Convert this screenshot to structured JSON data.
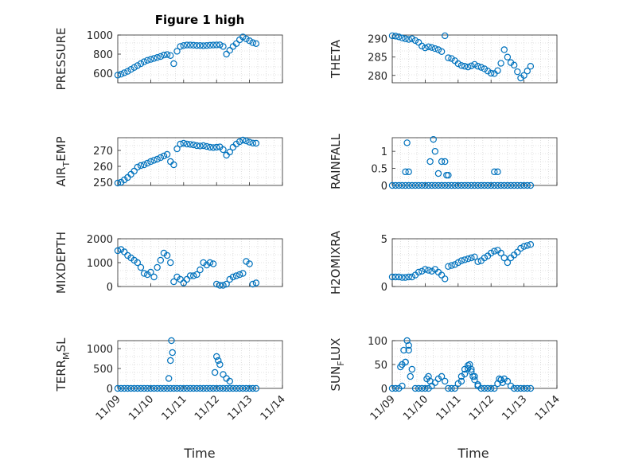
{
  "figure": {
    "title": "Figure 1 high",
    "marker_color": "#0072BD",
    "axis_color": "#262626",
    "grid_color": "#c8c8c8"
  },
  "chart_data": [
    {
      "type": "scatter",
      "title": "Figure 1 high",
      "ylabel_parts": [
        "PRESSURE"
      ],
      "xlim": [
        0,
        5
      ],
      "ylim": [
        500,
        1000
      ],
      "yticks": [
        600,
        800,
        1000
      ],
      "grid": true,
      "x": [
        0.0,
        0.1,
        0.2,
        0.3,
        0.4,
        0.5,
        0.6,
        0.7,
        0.8,
        0.9,
        1.0,
        1.1,
        1.2,
        1.3,
        1.4,
        1.5,
        1.6,
        1.7,
        1.8,
        1.9,
        2.0,
        2.1,
        2.2,
        2.3,
        2.4,
        2.5,
        2.6,
        2.7,
        2.8,
        2.9,
        3.0,
        3.1,
        3.2,
        3.3,
        3.4,
        3.5,
        3.6,
        3.7,
        3.8,
        3.9,
        4.0,
        4.1,
        4.2
      ],
      "y": [
        580,
        590,
        605,
        620,
        640,
        660,
        680,
        700,
        720,
        735,
        745,
        755,
        765,
        775,
        790,
        795,
        785,
        700,
        830,
        880,
        890,
        895,
        895,
        893,
        890,
        890,
        888,
        890,
        893,
        895,
        896,
        897,
        880,
        800,
        840,
        880,
        910,
        950,
        980,
        960,
        940,
        920,
        910
      ]
    },
    {
      "type": "scatter",
      "ylabel_parts": [
        "THETA"
      ],
      "xlim": [
        0,
        5
      ],
      "ylim": [
        278,
        291
      ],
      "yticks": [
        280,
        285,
        290
      ],
      "grid": true,
      "x": [
        0.0,
        0.1,
        0.2,
        0.3,
        0.4,
        0.5,
        0.6,
        0.7,
        0.8,
        0.9,
        1.0,
        1.1,
        1.2,
        1.3,
        1.4,
        1.5,
        1.6,
        1.7,
        1.8,
        1.9,
        2.0,
        2.1,
        2.2,
        2.3,
        2.4,
        2.5,
        2.6,
        2.7,
        2.8,
        2.9,
        3.0,
        3.1,
        3.2,
        3.3,
        3.4,
        3.5,
        3.6,
        3.7,
        3.8,
        3.9,
        4.0,
        4.1,
        4.2
      ],
      "y": [
        290.8,
        290.7,
        290.5,
        290.2,
        290.0,
        289.8,
        290.0,
        289.5,
        289.0,
        288.0,
        287.5,
        287.8,
        287.6,
        287.3,
        287.0,
        286.5,
        290.8,
        284.8,
        284.6,
        284.0,
        283.2,
        282.7,
        282.5,
        282.3,
        282.6,
        283.0,
        282.5,
        282.2,
        281.8,
        281.2,
        280.6,
        280.5,
        281.3,
        283.3,
        287.0,
        285.0,
        283.5,
        282.8,
        281.0,
        279.3,
        280.0,
        281.2,
        282.5
      ]
    },
    {
      "type": "scatter",
      "ylabel_parts": [
        "AIR",
        "T",
        "EMP"
      ],
      "xlim": [
        0,
        5
      ],
      "ylim": [
        248,
        278
      ],
      "yticks": [
        250,
        260,
        270
      ],
      "grid": true,
      "x": [
        0.0,
        0.1,
        0.2,
        0.3,
        0.4,
        0.5,
        0.6,
        0.7,
        0.8,
        0.9,
        1.0,
        1.1,
        1.2,
        1.3,
        1.4,
        1.5,
        1.6,
        1.7,
        1.8,
        1.9,
        2.0,
        2.1,
        2.2,
        2.3,
        2.4,
        2.5,
        2.6,
        2.7,
        2.8,
        2.9,
        3.0,
        3.1,
        3.2,
        3.3,
        3.4,
        3.5,
        3.6,
        3.7,
        3.8,
        3.9,
        4.0,
        4.1,
        4.2
      ],
      "y": [
        249.5,
        250.0,
        251.5,
        253.0,
        255.0,
        257.0,
        259.5,
        260.5,
        261.0,
        262.0,
        263.0,
        263.8,
        264.5,
        265.5,
        266.5,
        267.5,
        263.0,
        261.0,
        271.0,
        274.0,
        274.5,
        274.0,
        273.8,
        273.5,
        273.0,
        272.8,
        273.0,
        272.5,
        272.0,
        271.8,
        272.0,
        272.2,
        270.5,
        267.0,
        269.0,
        272.0,
        274.0,
        275.5,
        276.5,
        276.0,
        275.2,
        274.6,
        274.5
      ]
    },
    {
      "type": "scatter",
      "ylabel_parts": [
        "RAINFALL"
      ],
      "xlim": [
        0,
        5
      ],
      "ylim": [
        0,
        1.4
      ],
      "yticks": [
        0,
        0.5,
        1
      ],
      "grid": true,
      "x": [
        0.0,
        0.1,
        0.2,
        0.3,
        0.4,
        0.5,
        0.6,
        0.7,
        0.8,
        0.9,
        1.0,
        1.1,
        1.2,
        1.3,
        1.4,
        1.5,
        1.6,
        1.7,
        1.8,
        1.9,
        2.0,
        2.1,
        2.2,
        2.3,
        2.4,
        2.5,
        2.6,
        2.7,
        2.8,
        2.9,
        3.0,
        3.1,
        3.2,
        3.3,
        3.4,
        3.5,
        3.6,
        3.7,
        3.8,
        3.9,
        4.0,
        4.1,
        4.2,
        0.4,
        0.5,
        0.45,
        1.15,
        1.25,
        1.3,
        1.4,
        1.5,
        1.6,
        1.65,
        1.7,
        3.1,
        3.2
      ],
      "y": [
        0,
        0,
        0,
        0,
        0,
        0,
        0,
        0,
        0,
        0,
        0,
        0,
        0,
        0,
        0,
        0,
        0,
        0,
        0,
        0,
        0,
        0,
        0,
        0,
        0,
        0,
        0,
        0,
        0,
        0,
        0,
        0,
        0,
        0,
        0,
        0,
        0,
        0,
        0,
        0,
        0,
        0,
        0,
        0.4,
        0.4,
        1.25,
        0.7,
        1.35,
        1.0,
        0.35,
        0.7,
        0.7,
        0.3,
        0.3,
        0.4,
        0.4
      ]
    },
    {
      "type": "scatter",
      "ylabel_parts": [
        "MIXDEPTH"
      ],
      "xlim": [
        0,
        5
      ],
      "ylim": [
        0,
        2000
      ],
      "yticks": [
        0,
        1000,
        2000
      ],
      "grid": true,
      "x": [
        0.0,
        0.1,
        0.2,
        0.3,
        0.4,
        0.5,
        0.6,
        0.7,
        0.8,
        0.9,
        1.0,
        1.1,
        1.2,
        1.3,
        1.4,
        1.5,
        1.6,
        1.7,
        1.8,
        1.9,
        2.0,
        2.1,
        2.2,
        2.3,
        2.4,
        2.5,
        2.6,
        2.7,
        2.8,
        2.9,
        3.0,
        3.1,
        3.2,
        3.3,
        3.4,
        3.5,
        3.6,
        3.7,
        3.8,
        3.9,
        4.0,
        4.1,
        4.2
      ],
      "y": [
        1500,
        1550,
        1450,
        1300,
        1200,
        1100,
        1000,
        800,
        550,
        500,
        600,
        400,
        800,
        1100,
        1400,
        1300,
        1000,
        200,
        400,
        300,
        150,
        300,
        450,
        450,
        500,
        700,
        1000,
        900,
        1000,
        950,
        100,
        50,
        50,
        100,
        300,
        400,
        450,
        500,
        550,
        1050,
        950,
        100,
        150
      ]
    },
    {
      "type": "scatter",
      "ylabel_parts": [
        "H2OMIXRA"
      ],
      "xlim": [
        0,
        5
      ],
      "ylim": [
        0,
        5
      ],
      "yticks": [
        0,
        5
      ],
      "grid": true,
      "x": [
        0.0,
        0.1,
        0.2,
        0.3,
        0.4,
        0.5,
        0.6,
        0.7,
        0.8,
        0.9,
        1.0,
        1.1,
        1.2,
        1.3,
        1.4,
        1.5,
        1.6,
        1.7,
        1.8,
        1.9,
        2.0,
        2.1,
        2.2,
        2.3,
        2.4,
        2.5,
        2.6,
        2.7,
        2.8,
        2.9,
        3.0,
        3.1,
        3.2,
        3.3,
        3.4,
        3.5,
        3.6,
        3.7,
        3.8,
        3.9,
        4.0,
        4.1,
        4.2
      ],
      "y": [
        1.0,
        1.0,
        1.0,
        0.95,
        0.95,
        1.0,
        1.0,
        1.2,
        1.5,
        1.6,
        1.8,
        1.7,
        1.6,
        1.8,
        1.5,
        1.2,
        0.8,
        2.1,
        2.2,
        2.3,
        2.5,
        2.7,
        2.8,
        2.9,
        3.0,
        3.1,
        2.6,
        2.7,
        3.0,
        3.2,
        3.5,
        3.7,
        3.8,
        3.5,
        3.0,
        2.5,
        3.0,
        3.3,
        3.6,
        4.0,
        4.2,
        4.3,
        4.4
      ]
    },
    {
      "type": "scatter",
      "ylabel_parts": [
        "TERR",
        "M",
        "SL"
      ],
      "xlim": [
        0,
        5
      ],
      "ylim": [
        0,
        1200
      ],
      "yticks": [
        0,
        500,
        1000
      ],
      "grid": true,
      "x": [
        0.0,
        0.1,
        0.2,
        0.3,
        0.4,
        0.5,
        0.6,
        0.7,
        0.8,
        0.9,
        1.0,
        1.1,
        1.2,
        1.3,
        1.4,
        1.5,
        1.6,
        1.7,
        1.8,
        1.9,
        2.0,
        2.1,
        2.2,
        2.3,
        2.4,
        2.5,
        2.6,
        2.7,
        2.8,
        2.9,
        3.0,
        3.1,
        3.2,
        3.3,
        3.4,
        3.5,
        3.6,
        3.7,
        3.8,
        3.9,
        4.0,
        4.1,
        4.2,
        1.55,
        1.6,
        1.63,
        1.66,
        2.95,
        3.0,
        3.05,
        3.1,
        3.2,
        3.3,
        3.4
      ],
      "y": [
        0,
        0,
        0,
        0,
        0,
        0,
        0,
        0,
        0,
        0,
        0,
        0,
        0,
        0,
        0,
        0,
        0,
        0,
        0,
        0,
        0,
        0,
        0,
        0,
        0,
        0,
        0,
        0,
        0,
        0,
        0,
        0,
        0,
        0,
        0,
        0,
        0,
        0,
        0,
        0,
        0,
        0,
        0,
        250,
        700,
        1200,
        900,
        400,
        800,
        700,
        600,
        350,
        250,
        180
      ]
    },
    {
      "type": "scatter",
      "ylabel_parts": [
        "SUN",
        "F",
        "LUX"
      ],
      "xlim": [
        0,
        5
      ],
      "ylim": [
        0,
        100
      ],
      "yticks": [
        0,
        50,
        100
      ],
      "grid": true,
      "x": [
        0.0,
        0.1,
        0.2,
        0.3,
        0.4,
        0.5,
        0.6,
        0.7,
        0.8,
        0.9,
        1.0,
        1.1,
        1.2,
        1.3,
        1.4,
        1.5,
        1.6,
        1.7,
        1.8,
        1.9,
        2.0,
        2.1,
        2.2,
        2.3,
        2.4,
        2.5,
        2.6,
        2.7,
        2.8,
        2.9,
        3.0,
        3.1,
        3.2,
        3.3,
        3.4,
        3.5,
        3.6,
        3.7,
        3.8,
        3.9,
        4.0,
        4.1,
        4.2,
        0.25,
        0.3,
        0.35,
        0.4,
        0.45,
        0.5,
        0.55,
        1.05,
        1.1,
        1.15,
        2.1,
        2.2,
        2.3,
        2.35,
        2.4,
        2.45,
        2.5,
        2.6,
        3.25,
        3.3,
        3.35
      ],
      "y": [
        0,
        0,
        0,
        5,
        55,
        80,
        40,
        0,
        0,
        0,
        0,
        0,
        5,
        12,
        20,
        25,
        15,
        0,
        0,
        0,
        10,
        25,
        40,
        48,
        40,
        25,
        8,
        0,
        0,
        0,
        0,
        0,
        10,
        18,
        20,
        15,
        5,
        0,
        0,
        0,
        0,
        0,
        0,
        45,
        50,
        80,
        55,
        100,
        90,
        25,
        20,
        25,
        15,
        15,
        30,
        42,
        50,
        35,
        25,
        18,
        5,
        20,
        18,
        12
      ]
    }
  ],
  "xaxis": {
    "label": "Time",
    "ticks": [
      "11/09",
      "11/10",
      "11/11",
      "11/12",
      "11/13",
      "11/14"
    ]
  }
}
